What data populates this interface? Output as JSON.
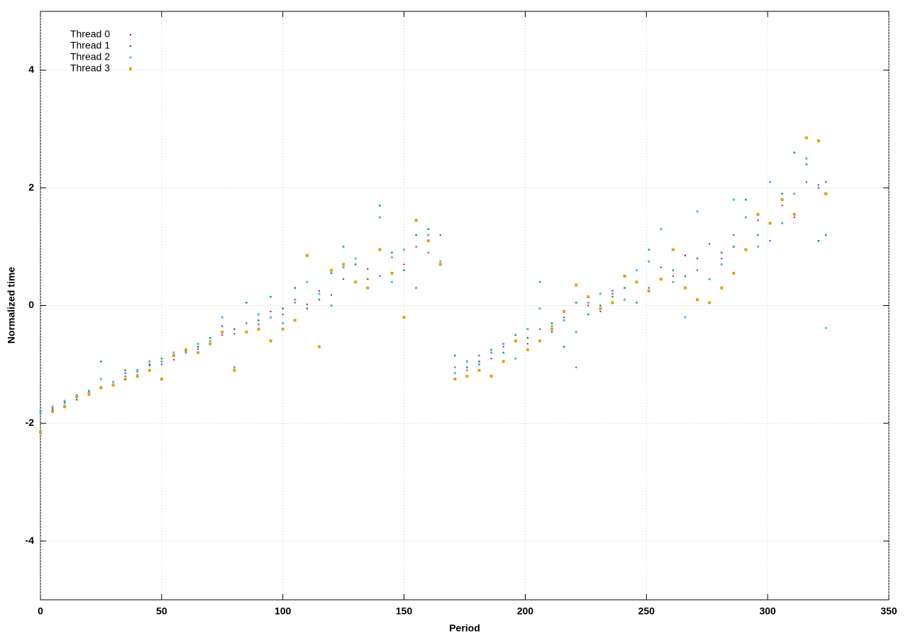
{
  "chart_data": {
    "type": "scatter",
    "x_label": "Period",
    "y_label": "Normalized time",
    "x": [
      0,
      5,
      10,
      15,
      20,
      25,
      30,
      35,
      40,
      45,
      50,
      55,
      60,
      65,
      70,
      75,
      80,
      85,
      90,
      95,
      100,
      105,
      110,
      115,
      120,
      125,
      130,
      135,
      140,
      145,
      150,
      155,
      160,
      165,
      171,
      176,
      181,
      186,
      191,
      196,
      201,
      206,
      211,
      216,
      221,
      226,
      231,
      236,
      241,
      246,
      251,
      256,
      261,
      266,
      271,
      276,
      281,
      286,
      291,
      296,
      301,
      306,
      311,
      316,
      321,
      324
    ],
    "series": [
      {
        "name": "Thread 0",
        "color": "#9400d3",
        "values": [
          -1.83,
          -1.78,
          -1.7,
          -1.55,
          -1.52,
          -1.38,
          -1.36,
          -1.2,
          -1.18,
          -1.02,
          -1.0,
          -0.92,
          -0.75,
          -0.74,
          -0.6,
          -0.5,
          -0.48,
          -0.3,
          -0.32,
          -0.1,
          -0.15,
          0.05,
          0.02,
          0.25,
          0.18,
          0.45,
          0.4,
          0.62,
          0.5,
          0.82,
          0.7,
          1.0,
          0.9,
          1.2,
          -1.05,
          -1.1,
          -0.85,
          -0.9,
          -0.7,
          -0.6,
          -0.65,
          -0.4,
          -0.45,
          -0.2,
          -1.05,
          0.0,
          -0.1,
          0.2,
          0.1,
          0.4,
          0.3,
          0.65,
          0.5,
          0.85,
          0.6,
          1.05,
          0.8,
          1.2,
          0.95,
          1.45,
          1.1,
          1.7,
          1.5,
          2.1,
          2.05,
          2.1
        ]
      },
      {
        "name": "Thread 1",
        "color": "#009e73",
        "values": [
          -1.8,
          -1.75,
          -1.65,
          -1.6,
          -1.45,
          -0.95,
          -1.3,
          -1.1,
          -1.12,
          -1.0,
          -0.9,
          -0.85,
          -0.78,
          -0.7,
          -0.55,
          -0.35,
          -0.4,
          0.05,
          -0.25,
          0.15,
          -0.05,
          0.3,
          -0.05,
          0.1,
          0.55,
          1.0,
          0.7,
          0.45,
          1.7,
          0.9,
          0.6,
          1.2,
          1.3,
          0.7,
          -0.85,
          -1.05,
          -0.95,
          -0.75,
          -0.8,
          -0.5,
          -0.55,
          0.4,
          -0.3,
          -0.7,
          0.05,
          -0.15,
          0.0,
          0.15,
          0.3,
          0.05,
          0.95,
          1.3,
          0.6,
          0.5,
          0.8,
          0.45,
          0.9,
          1.0,
          1.8,
          1.2,
          1.4,
          1.9,
          2.6,
          2.4,
          1.1,
          1.2
        ]
      },
      {
        "name": "Thread 2",
        "color": "#56b4e9",
        "values": [
          -1.82,
          -1.72,
          -1.62,
          -1.52,
          -1.48,
          -1.25,
          -1.3,
          -1.15,
          -1.1,
          -0.95,
          -0.95,
          -0.8,
          -0.8,
          -0.65,
          -0.6,
          -0.2,
          -1.05,
          -0.45,
          -0.15,
          -0.2,
          -0.3,
          0.1,
          0.4,
          0.2,
          0.0,
          0.65,
          0.8,
          0.3,
          1.5,
          0.4,
          0.95,
          0.3,
          1.2,
          0.75,
          -1.15,
          -0.95,
          -1.0,
          -0.8,
          -0.65,
          -0.9,
          -0.4,
          -0.05,
          -0.35,
          -0.25,
          -0.45,
          0.05,
          0.2,
          0.25,
          0.1,
          0.6,
          0.75,
          1.3,
          0.4,
          -0.2,
          1.6,
          0.45,
          0.7,
          1.8,
          1.5,
          1.0,
          2.1,
          1.4,
          1.9,
          2.5,
          2.0,
          -0.38
        ]
      },
      {
        "name": "Thread 3",
        "color": "#e69f00",
        "values": [
          -2.15,
          -1.8,
          -1.72,
          -1.55,
          -1.5,
          -1.4,
          -1.35,
          -1.25,
          -1.2,
          -1.1,
          -1.25,
          -0.85,
          -0.75,
          -0.8,
          -0.65,
          -0.45,
          -1.1,
          -0.45,
          -0.4,
          -0.6,
          -0.4,
          -0.25,
          0.85,
          -0.7,
          0.6,
          0.7,
          0.4,
          0.3,
          0.95,
          0.55,
          -0.2,
          1.45,
          1.1,
          0.7,
          -1.25,
          -1.2,
          -1.1,
          -1.2,
          -0.95,
          -0.6,
          -0.75,
          -0.6,
          -0.4,
          -0.1,
          0.35,
          0.15,
          -0.05,
          0.05,
          0.5,
          0.4,
          0.25,
          0.45,
          0.95,
          0.3,
          0.1,
          0.05,
          0.3,
          0.55,
          0.95,
          1.55,
          1.4,
          1.8,
          1.55,
          2.85,
          2.8,
          1.9
        ]
      }
    ],
    "xlim": [
      0,
      350
    ],
    "xticks": [
      0,
      50,
      100,
      150,
      200,
      250,
      300,
      350
    ],
    "ylim": [
      -5,
      5
    ],
    "yticks": [
      -4,
      -2,
      0,
      2,
      4
    ],
    "grid": true,
    "legend": "top left"
  }
}
